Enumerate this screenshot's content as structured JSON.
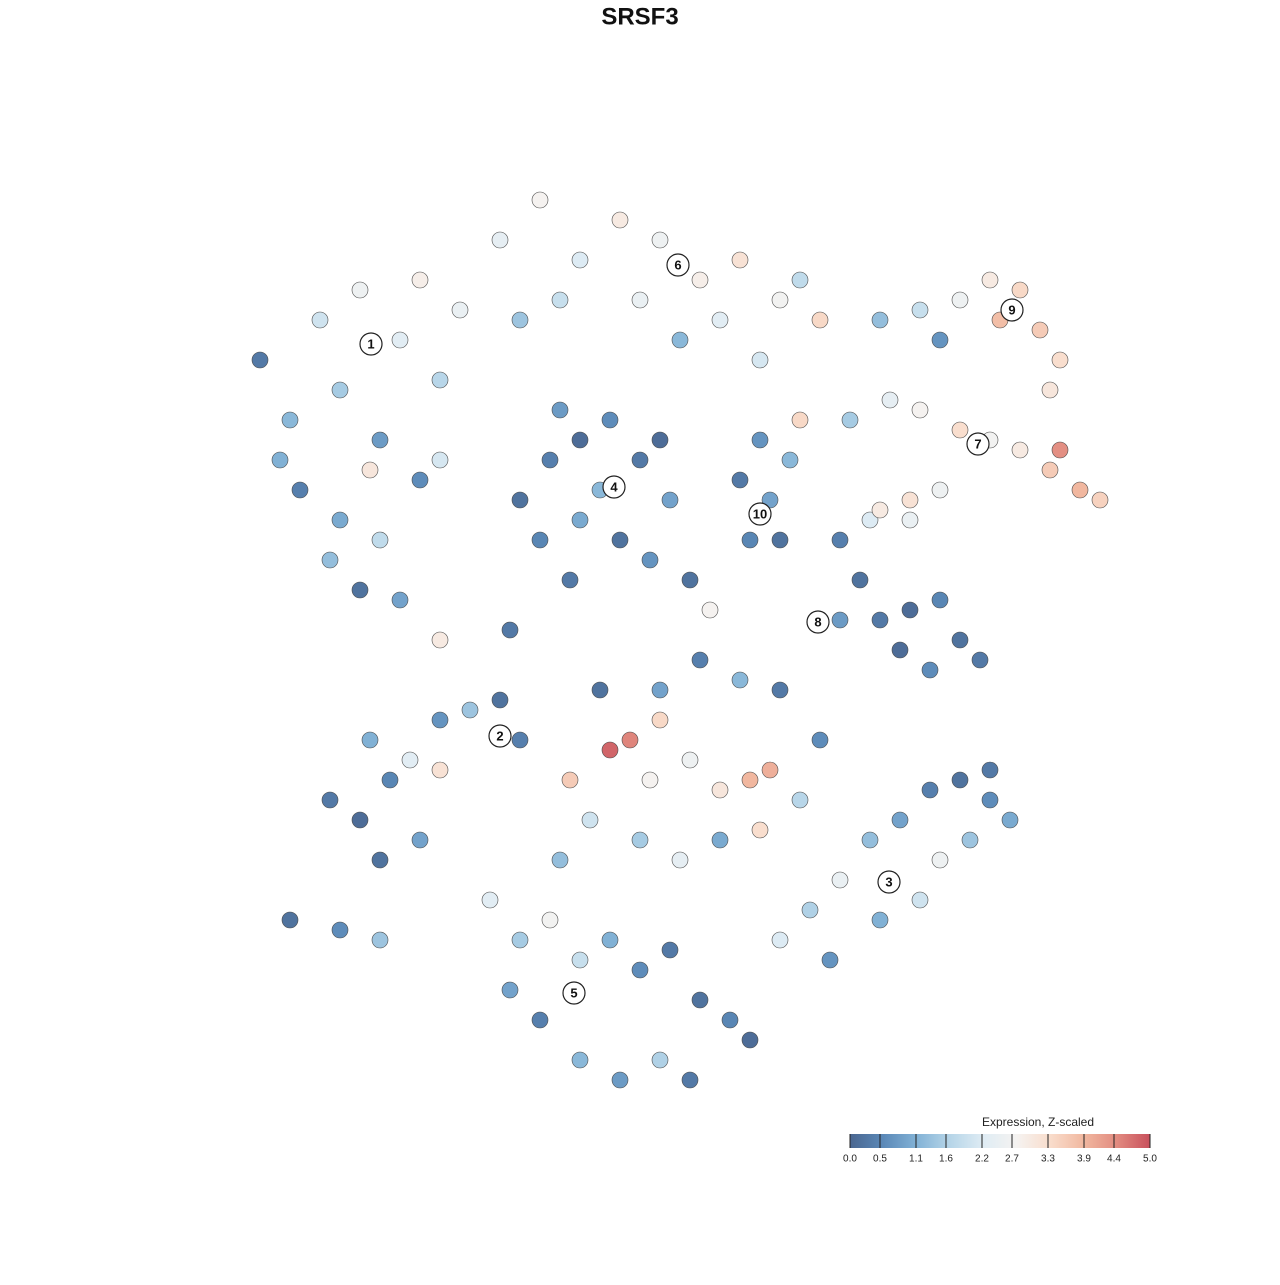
{
  "chart_data": {
    "type": "scatter",
    "title": "SRSF3",
    "xlim": [
      -50,
      50
    ],
    "ylim": [
      -50,
      50
    ],
    "x": [
      -38,
      -35,
      -32,
      -30,
      -28,
      -26,
      -24,
      -22,
      -20,
      -18,
      -34,
      -30,
      -26,
      -22,
      -28,
      -31,
      -24,
      -36,
      -20,
      -27,
      -14,
      -10,
      -6,
      -2,
      2,
      6,
      10,
      14,
      18,
      -8,
      0,
      4,
      8,
      -12,
      12,
      16,
      24,
      28,
      32,
      35,
      38,
      40,
      42,
      41,
      30,
      36,
      21,
      25,
      28,
      32,
      35,
      38,
      41,
      44,
      46,
      42,
      27,
      23,
      30,
      -12,
      -9,
      -6,
      -3,
      0,
      3,
      -10,
      -6,
      -2,
      1,
      -7,
      -4,
      2,
      -8,
      10,
      13,
      15,
      11,
      14,
      16,
      12,
      20,
      22,
      20,
      24,
      27,
      30,
      32,
      34,
      29,
      26,
      24,
      27,
      -31,
      -28,
      -25,
      -27,
      -23,
      -20,
      -17,
      -14,
      -12,
      -22,
      -26,
      -20,
      -7,
      -3,
      -1,
      2,
      5,
      8,
      11,
      13,
      -5,
      0,
      4,
      8,
      12,
      16,
      18,
      14,
      10,
      6,
      2,
      -4,
      -8,
      1,
      14,
      17,
      20,
      23,
      26,
      29,
      32,
      35,
      37,
      33,
      28,
      24,
      19,
      30,
      35,
      -15,
      -12,
      -9,
      -6,
      -3,
      0,
      3,
      6,
      9,
      11,
      -10,
      -6,
      -2,
      2,
      5,
      -13,
      -35,
      -30,
      -26,
      -20,
      -13,
      5,
      7
    ],
    "y": [
      28,
      22,
      32,
      25,
      35,
      20,
      30,
      36,
      26,
      33,
      15,
      12,
      10,
      16,
      5,
      8,
      4,
      18,
      18,
      17,
      40,
      44,
      38,
      42,
      40,
      36,
      38,
      34,
      32,
      34,
      34,
      30,
      32,
      32,
      28,
      36,
      32,
      33,
      34,
      36,
      35,
      31,
      28,
      25,
      30,
      32,
      22,
      24,
      23,
      21,
      20,
      19,
      17,
      15,
      14,
      19,
      14,
      12,
      15,
      14,
      18,
      20,
      22,
      18,
      14,
      10,
      12,
      10,
      8,
      6,
      15,
      20,
      23,
      16,
      14,
      18,
      10,
      10,
      22,
      20,
      10,
      6,
      2,
      2,
      3,
      4,
      0,
      -2,
      -3,
      -1,
      13,
      12,
      -16,
      -18,
      -14,
      -10,
      -12,
      -8,
      -7,
      -6,
      -10,
      -20,
      -22,
      -13,
      -14,
      -11,
      -10,
      -8,
      -12,
      -15,
      -14,
      -13,
      -18,
      -20,
      -22,
      -20,
      -19,
      -16,
      -10,
      -5,
      -4,
      -2,
      -5,
      -5,
      -22,
      -14,
      -30,
      -27,
      -24,
      -20,
      -18,
      -15,
      -14,
      -16,
      -18,
      -20,
      -26,
      -28,
      -32,
      -22,
      -13,
      -26,
      -30,
      -28,
      -32,
      -30,
      -33,
      -31,
      -36,
      -38,
      -40,
      -38,
      -42,
      -44,
      -42,
      -44,
      -35,
      -28,
      -29,
      -30,
      0,
      1,
      6,
      3
    ],
    "values": [
      0.3,
      1.2,
      2.0,
      1.5,
      2.6,
      0.8,
      2.3,
      2.9,
      1.7,
      2.5,
      0.4,
      1.0,
      1.8,
      0.6,
      0.2,
      1.3,
      0.9,
      1.1,
      2.1,
      3.1,
      2.4,
      2.8,
      2.2,
      3.0,
      2.6,
      2.9,
      3.2,
      2.7,
      3.4,
      1.9,
      2.5,
      1.2,
      2.3,
      1.4,
      2.1,
      1.8,
      1.3,
      1.9,
      2.6,
      3.0,
      3.4,
      3.6,
      3.3,
      3.1,
      0.7,
      3.8,
      1.5,
      2.4,
      2.8,
      3.3,
      2.7,
      3.0,
      3.6,
      3.9,
      3.5,
      4.4,
      3.2,
      2.2,
      2.6,
      0.2,
      0.4,
      0.1,
      0.6,
      0.3,
      0.9,
      0.5,
      1.0,
      0.2,
      0.7,
      0.3,
      1.2,
      0.1,
      0.8,
      0.3,
      0.9,
      1.2,
      0.5,
      0.2,
      3.4,
      0.7,
      0.4,
      0.2,
      0.8,
      0.3,
      0.1,
      0.5,
      0.2,
      0.3,
      0.6,
      0.1,
      3.0,
      2.5,
      0.3,
      0.1,
      0.5,
      1.1,
      2.3,
      0.7,
      1.4,
      0.2,
      0.4,
      0.9,
      0.2,
      3.2,
      3.6,
      4.8,
      4.5,
      3.4,
      2.6,
      3.1,
      3.9,
      4.0,
      2.0,
      1.5,
      2.4,
      1.0,
      3.3,
      1.7,
      0.6,
      0.3,
      1.2,
      0.4,
      0.9,
      0.2,
      1.3,
      2.8,
      2.2,
      1.6,
      2.5,
      1.3,
      0.9,
      0.4,
      0.2,
      0.6,
      1.0,
      1.4,
      2.0,
      1.1,
      0.7,
      2.6,
      0.3,
      2.3,
      1.5,
      2.7,
      1.9,
      1.1,
      0.6,
      0.3,
      0.2,
      0.5,
      0.1,
      0.4,
      1.2,
      0.8,
      1.6,
      0.3,
      0.9,
      0.2,
      0.6,
      1.4,
      3.0,
      0.3,
      0.2,
      2.8
    ],
    "clusters": {
      "labels": [
        "1",
        "6",
        "9",
        "7",
        "4",
        "10",
        "8",
        "2",
        "3",
        "5"
      ],
      "x": [
        -26.9,
        3.8,
        37.2,
        33.8,
        -2.6,
        12,
        17.8,
        -14,
        24.9,
        -6.6
      ],
      "y": [
        29.6,
        37.5,
        33,
        19.6,
        15.3,
        12.6,
        1.8,
        -9.6,
        -24.2,
        -35.3
      ]
    },
    "colorbar": {
      "title": "Expression, Z-scaled",
      "vlim": [
        0,
        5
      ],
      "colors": [
        "#4a6690",
        "#5b89b8",
        "#82b2d6",
        "#b6d5e8",
        "#dfecf4",
        "#f5f3f1",
        "#f9ddcc",
        "#f1b8a0",
        "#e28b80",
        "#c8505c"
      ],
      "ticks": [
        {
          "value": 0,
          "label": "0.0"
        },
        0.5,
        1.1,
        1.6,
        2.2,
        2.7,
        3.3,
        3.9,
        4.4,
        {
          "value": 5,
          "label": "5.0"
        }
      ]
    }
  }
}
